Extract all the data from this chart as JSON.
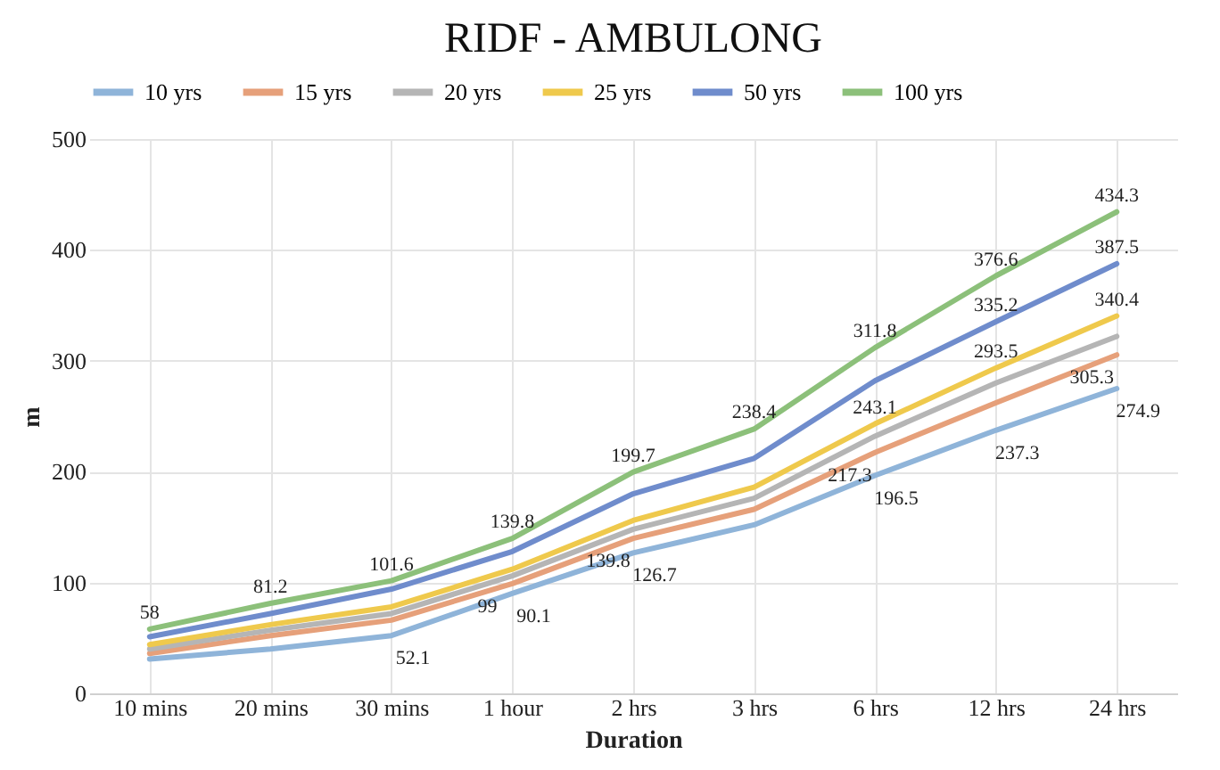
{
  "chart_data": {
    "type": "line",
    "title": "RIDF - AMBULONG",
    "xlabel": "Duration",
    "ylabel": "m",
    "categories": [
      "10 mins",
      "20 mins",
      "30 mins",
      "1 hour",
      "2 hrs",
      "3 hrs",
      "6 hrs",
      "12 hrs",
      "24 hrs"
    ],
    "series": [
      {
        "name": "10 yrs",
        "color": "#8fb4d9",
        "values": [
          31,
          40,
          52.1,
          90.1,
          126.7,
          152,
          196.5,
          237.3,
          274.9
        ],
        "value_labels": [
          null,
          null,
          "52.1",
          "90.1",
          "126.7",
          null,
          "196.5",
          "237.3",
          "274.9"
        ]
      },
      {
        "name": "15 yrs",
        "color": "#e6a07a",
        "values": [
          36,
          52,
          66,
          99,
          139.8,
          166,
          217.3,
          262,
          305.3
        ],
        "value_labels": [
          null,
          null,
          null,
          "99",
          "139.8",
          null,
          "217.3",
          null,
          "305.3"
        ]
      },
      {
        "name": "20 yrs",
        "color": "#b5b5b5",
        "values": [
          40,
          57,
          72,
          106,
          148,
          176,
          232,
          280,
          322
        ]
      },
      {
        "name": "25 yrs",
        "color": "#efc94c",
        "values": [
          44,
          62,
          78,
          112,
          156,
          186,
          243.1,
          293.5,
          340.4
        ],
        "value_labels": [
          null,
          null,
          null,
          null,
          null,
          null,
          "243.1",
          "293.5",
          "340.4"
        ]
      },
      {
        "name": "50 yrs",
        "color": "#6f8ccc",
        "values": [
          51,
          72,
          94,
          128,
          180,
          212,
          282,
          335.2,
          387.5
        ],
        "value_labels": [
          null,
          null,
          null,
          null,
          null,
          null,
          null,
          "335.2",
          "387.5"
        ]
      },
      {
        "name": "100 yrs",
        "color": "#8cc07a",
        "values": [
          58,
          81.2,
          101.6,
          139.8,
          199.7,
          238.4,
          311.8,
          376.6,
          434.3
        ],
        "value_labels": [
          "58",
          "81.2",
          "101.6",
          "139.8",
          "199.7",
          "238.4",
          "311.8",
          "376.6",
          "434.3"
        ]
      }
    ],
    "ylim": [
      0,
      500
    ],
    "yticks": [
      0,
      100,
      200,
      300,
      400,
      500
    ],
    "grid": true,
    "legend": "top",
    "marker": "none",
    "line_style": "solid"
  }
}
